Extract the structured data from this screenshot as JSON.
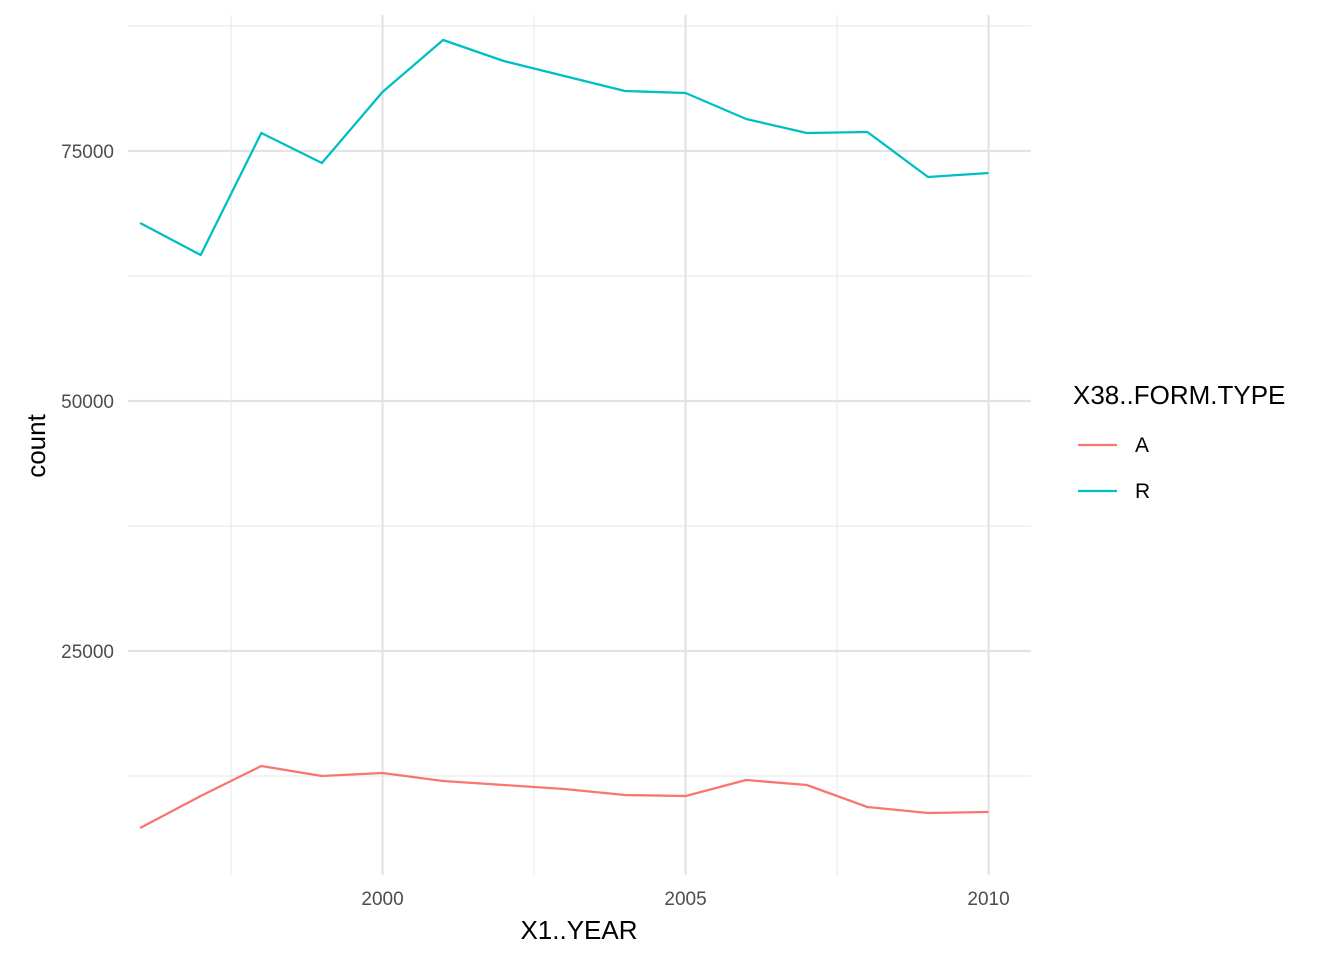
{
  "chart_data": {
    "type": "line",
    "title": "",
    "xlabel": "X1..YEAR",
    "ylabel": "count",
    "x": [
      1996,
      1997,
      1998,
      1999,
      2000,
      2001,
      2002,
      2003,
      2004,
      2005,
      2006,
      2007,
      2008,
      2009,
      2010
    ],
    "series": [
      {
        "name": "A",
        "color": "#F8766D",
        "values": [
          7300,
          10500,
          13500,
          12500,
          12800,
          12000,
          11600,
          11200,
          10600,
          10500,
          12100,
          11600,
          9400,
          8800,
          8900
        ]
      },
      {
        "name": "R",
        "color": "#00BFC4",
        "values": [
          67800,
          64600,
          76800,
          73800,
          80900,
          86100,
          84000,
          82500,
          81000,
          80800,
          78200,
          76800,
          76900,
          72400,
          72800
        ]
      }
    ],
    "xlim": [
      1995.8,
      2010.7
    ],
    "ylim": [
      2600,
      88600
    ],
    "x_ticks": [
      "2000",
      "2005",
      "2010"
    ],
    "y_ticks": [
      "25000",
      "50000",
      "75000"
    ],
    "grid": true,
    "legend": {
      "title": "X38..FORM.TYPE",
      "position": "right"
    }
  }
}
